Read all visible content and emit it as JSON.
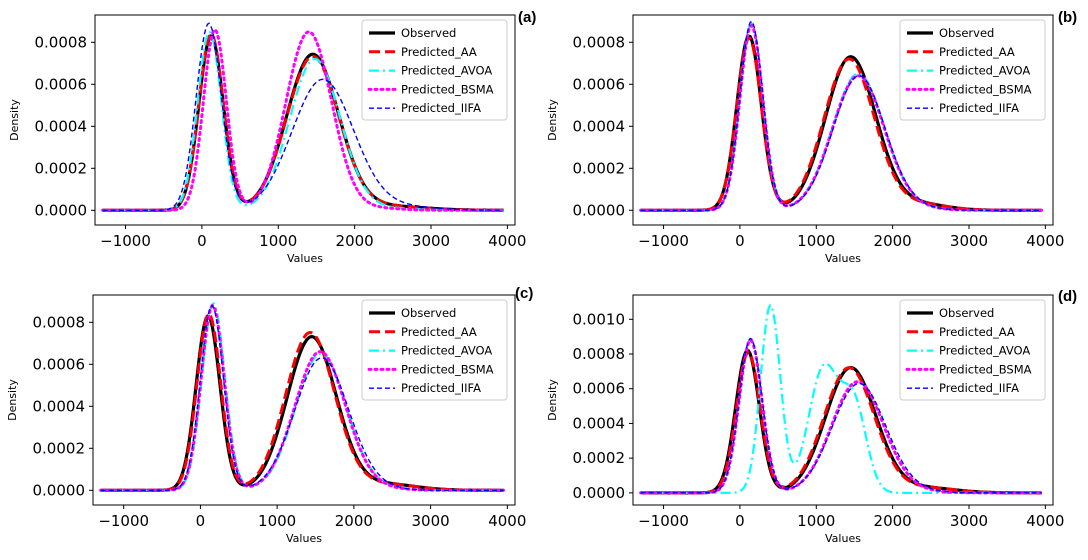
{
  "legend_entries": [
    "Observed",
    "Predicted_AA",
    "Predicted_AVOA",
    "Predicted_BSMA",
    "Predicted_IIFA"
  ],
  "series_styles": {
    "Observed": {
      "color": "#000000",
      "dash": "solid"
    },
    "Predicted_AA": {
      "color": "#ff0000",
      "dash": "long-dash"
    },
    "Predicted_AVOA": {
      "color": "#00ffff",
      "dash": "dash-dot"
    },
    "Predicted_BSMA": {
      "color": "#ff00ff",
      "dash": "dotted"
    },
    "Predicted_IIFA": {
      "color": "#0000ff",
      "dash": "short-dash"
    }
  },
  "chart_data": [
    {
      "type": "line",
      "panel": "(a)",
      "xlabel": "Values",
      "ylabel": "Density",
      "xlim": [
        -1400,
        4100
      ],
      "ylim": [
        -7e-05,
        0.00093
      ],
      "xticks": [
        -1000,
        0,
        1000,
        2000,
        3000,
        4000
      ],
      "yticks": [
        0.0,
        0.0002,
        0.0004,
        0.0006,
        0.0008
      ],
      "ytick_labels": [
        "0.0000",
        "0.0002",
        "0.0004",
        "0.0006",
        "0.0008"
      ],
      "legend_position": "upper right",
      "series": [
        {
          "name": "Observed",
          "x_range": [
            -1300,
            3950
          ],
          "peaks": [
            [
              120,
              0.00083,
              160
            ],
            [
              1450,
              0.00074,
              340
            ]
          ],
          "tail": [
            2400,
            2e-05,
            500
          ]
        },
        {
          "name": "Predicted_AA",
          "x_range": [
            -1300,
            3950
          ],
          "peaks": [
            [
              120,
              0.00084,
              160
            ],
            [
              1450,
              0.00073,
              340
            ]
          ],
          "tail": [
            2400,
            2e-05,
            500
          ]
        },
        {
          "name": "Predicted_AVOA",
          "x_range": [
            -1300,
            3950
          ],
          "peaks": [
            [
              100,
              0.00085,
              155
            ],
            [
              1480,
              0.00072,
              330
            ]
          ],
          "tail": [
            2400,
            1e-05,
            400
          ]
        },
        {
          "name": "Predicted_BSMA",
          "x_range": [
            -1300,
            3950
          ],
          "peaks": [
            [
              170,
              0.00086,
              150
            ],
            [
              1400,
              0.00085,
              300
            ]
          ],
          "tail": [
            2300,
            1e-05,
            300
          ]
        },
        {
          "name": "Predicted_IIFA",
          "x_range": [
            -1300,
            3950
          ],
          "peaks": [
            [
              90,
              0.00089,
              165
            ],
            [
              1580,
              0.00062,
              400
            ]
          ],
          "tail": [
            2500,
            2e-05,
            500
          ]
        }
      ]
    },
    {
      "type": "line",
      "panel": "(b)",
      "xlabel": "Values",
      "ylabel": "Density",
      "xlim": [
        -1400,
        4100
      ],
      "ylim": [
        -7e-05,
        0.00093
      ],
      "xticks": [
        -1000,
        0,
        1000,
        2000,
        3000,
        4000
      ],
      "yticks": [
        0.0,
        0.0002,
        0.0004,
        0.0006,
        0.0008
      ],
      "ytick_labels": [
        "0.0000",
        "0.0002",
        "0.0004",
        "0.0006",
        "0.0008"
      ],
      "legend_position": "upper right",
      "series": [
        {
          "name": "Observed",
          "x_range": [
            -1300,
            3950
          ],
          "peaks": [
            [
              120,
              0.00083,
              160
            ],
            [
              1450,
              0.00073,
              330
            ]
          ],
          "tail": [
            2350,
            3e-05,
            350
          ]
        },
        {
          "name": "Predicted_AA",
          "x_range": [
            -1300,
            3950
          ],
          "peaks": [
            [
              120,
              0.00082,
              160
            ],
            [
              1430,
              0.00072,
              330
            ]
          ],
          "tail": [
            2350,
            3e-05,
            350
          ]
        },
        {
          "name": "Predicted_AVOA",
          "x_range": [
            -1300,
            3950
          ],
          "peaks": [
            [
              150,
              0.00089,
              150
            ],
            [
              1550,
              0.00065,
              340
            ]
          ],
          "tail": [
            2300,
            1e-05,
            300
          ]
        },
        {
          "name": "Predicted_BSMA",
          "x_range": [
            -1300,
            3950
          ],
          "peaks": [
            [
              150,
              0.00088,
              150
            ],
            [
              1550,
              0.00064,
              340
            ]
          ],
          "tail": [
            2300,
            1e-05,
            300
          ]
        },
        {
          "name": "Predicted_IIFA",
          "x_range": [
            -1300,
            3950
          ],
          "peaks": [
            [
              150,
              0.0009,
              150
            ],
            [
              1560,
              0.00064,
              340
            ]
          ],
          "tail": [
            2300,
            1e-05,
            300
          ]
        }
      ]
    },
    {
      "type": "line",
      "panel": "(c)",
      "xlabel": "Values",
      "ylabel": "Density",
      "xlim": [
        -1400,
        4100
      ],
      "ylim": [
        -7e-05,
        0.00093
      ],
      "xticks": [
        -1000,
        0,
        1000,
        2000,
        3000,
        4000
      ],
      "yticks": [
        0.0,
        0.0002,
        0.0004,
        0.0006,
        0.0008
      ],
      "ytick_labels": [
        "0.0000",
        "0.0002",
        "0.0004",
        "0.0006",
        "0.0008"
      ],
      "legend_position": "upper right",
      "series": [
        {
          "name": "Observed",
          "x_range": [
            -1300,
            3950
          ],
          "peaks": [
            [
              100,
              0.00083,
              155
            ],
            [
              1450,
              0.00073,
              320
            ]
          ],
          "tail": [
            2400,
            3e-05,
            400
          ]
        },
        {
          "name": "Predicted_AA",
          "x_range": [
            -1300,
            3950
          ],
          "peaks": [
            [
              110,
              0.00084,
              155
            ],
            [
              1430,
              0.00075,
              320
            ]
          ],
          "tail": [
            2400,
            3e-05,
            400
          ]
        },
        {
          "name": "Predicted_AVOA",
          "x_range": [
            -1300,
            3950
          ],
          "peaks": [
            [
              170,
              0.00089,
              150
            ],
            [
              1570,
              0.00065,
              330
            ]
          ],
          "tail": [
            2300,
            1e-05,
            300
          ]
        },
        {
          "name": "Predicted_BSMA",
          "x_range": [
            -1300,
            3950
          ],
          "peaks": [
            [
              160,
              0.00088,
              150
            ],
            [
              1560,
              0.00066,
              330
            ]
          ],
          "tail": [
            2300,
            1e-05,
            300
          ]
        },
        {
          "name": "Predicted_IIFA",
          "x_range": [
            -1300,
            3950
          ],
          "peaks": [
            [
              150,
              0.00088,
              150
            ],
            [
              1580,
              0.00063,
              350
            ]
          ],
          "tail": [
            2300,
            1e-05,
            300
          ]
        }
      ]
    },
    {
      "type": "line",
      "panel": "(d)",
      "xlabel": "Values",
      "ylabel": "Density",
      "xlim": [
        -1400,
        4100
      ],
      "ylim": [
        -7e-05,
        0.00114
      ],
      "xticks": [
        -1000,
        0,
        1000,
        2000,
        3000,
        4000
      ],
      "yticks": [
        0.0,
        0.0002,
        0.0004,
        0.0006,
        0.0008,
        0.001
      ],
      "ytick_labels": [
        "0.0000",
        "0.0002",
        "0.0004",
        "0.0006",
        "0.0008",
        "0.0010"
      ],
      "legend_position": "upper right",
      "series": [
        {
          "name": "Observed",
          "x_range": [
            -1300,
            3950
          ],
          "peaks": [
            [
              100,
              0.00082,
              155
            ],
            [
              1450,
              0.00072,
              330
            ]
          ],
          "tail": [
            2400,
            3e-05,
            400
          ]
        },
        {
          "name": "Predicted_AA",
          "x_range": [
            -1300,
            3950
          ],
          "peaks": [
            [
              110,
              0.00081,
              155
            ],
            [
              1430,
              0.00072,
              330
            ]
          ],
          "tail": [
            2400,
            3e-05,
            400
          ]
        },
        {
          "name": "Predicted_AVOA",
          "x_range": [
            -1300,
            3950
          ],
          "peaks": [
            [
              400,
              0.00108,
              130
            ],
            [
              1100,
              0.00072,
              200
            ],
            [
              1500,
              0.00048,
              160
            ]
          ],
          "tail": [
            2200,
            0.0,
            200
          ]
        },
        {
          "name": "Predicted_BSMA",
          "x_range": [
            -1300,
            3950
          ],
          "peaks": [
            [
              140,
              0.00088,
              150
            ],
            [
              1540,
              0.00064,
              340
            ]
          ],
          "tail": [
            2300,
            1e-05,
            300
          ]
        },
        {
          "name": "Predicted_IIFA",
          "x_range": [
            -1300,
            3950
          ],
          "peaks": [
            [
              140,
              0.00089,
              150
            ],
            [
              1560,
              0.00063,
              350
            ]
          ],
          "tail": [
            2300,
            1e-05,
            300
          ]
        }
      ]
    }
  ]
}
